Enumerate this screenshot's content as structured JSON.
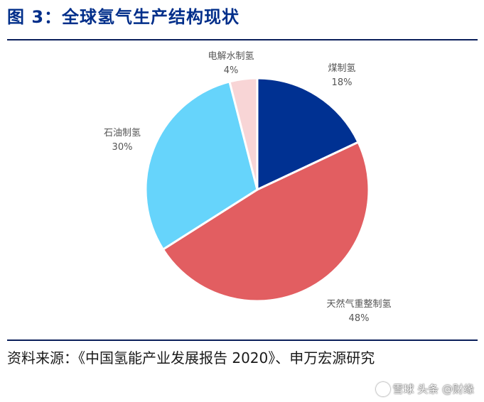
{
  "header": {
    "title": "图 3：全球氢气生产结构现状"
  },
  "chart_data": {
    "type": "pie",
    "title": "全球氢气生产结构现状",
    "start_angle_deg": 0,
    "direction": "clockwise",
    "slices": [
      {
        "name": "煤制氢",
        "value": 18,
        "label": "18%",
        "color": "#003192"
      },
      {
        "name": "天然气重整制氢",
        "value": 48,
        "label": "48%",
        "color": "#e25e61"
      },
      {
        "name": "石油制氢",
        "value": 30,
        "label": "30%",
        "color": "#66d4fb"
      },
      {
        "name": "电解水制氢",
        "value": 4,
        "label": "4%",
        "color": "#f8d5d6"
      }
    ]
  },
  "footer": {
    "source": "资料来源：《中国氢能产业发展报告 2020》、申万宏源研究"
  },
  "watermark": {
    "text": "雪球 头条 @财缘"
  }
}
